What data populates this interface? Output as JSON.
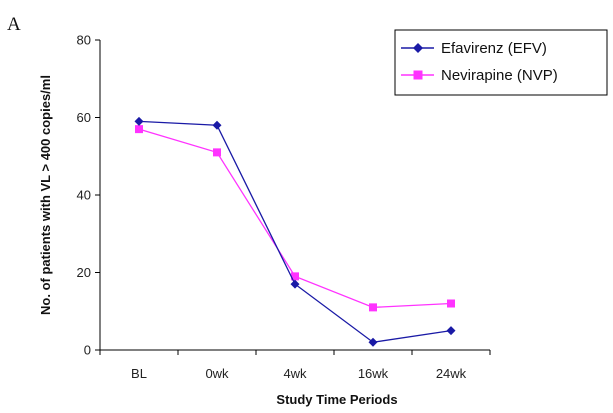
{
  "chart_data": {
    "type": "line",
    "panel_label": "A",
    "xlabel": "Study Time Periods",
    "ylabel": "No. of patients with VL > 400 copies/ml",
    "categories": [
      "BL",
      "0wk",
      "4wk",
      "16wk",
      "24wk"
    ],
    "ylim": [
      0,
      80
    ],
    "yticks": [
      0,
      20,
      40,
      60,
      80
    ],
    "grid": false,
    "legend_position": "top-right",
    "series": [
      {
        "name": "Efavirenz (EFV)",
        "marker": "diamond",
        "color": "#1a1aa6",
        "values": [
          59,
          58,
          17,
          2,
          5
        ]
      },
      {
        "name": "Nevirapine (NVP)",
        "marker": "square",
        "color": "#ff33ff",
        "values": [
          57,
          51,
          19,
          11,
          12
        ]
      }
    ]
  }
}
